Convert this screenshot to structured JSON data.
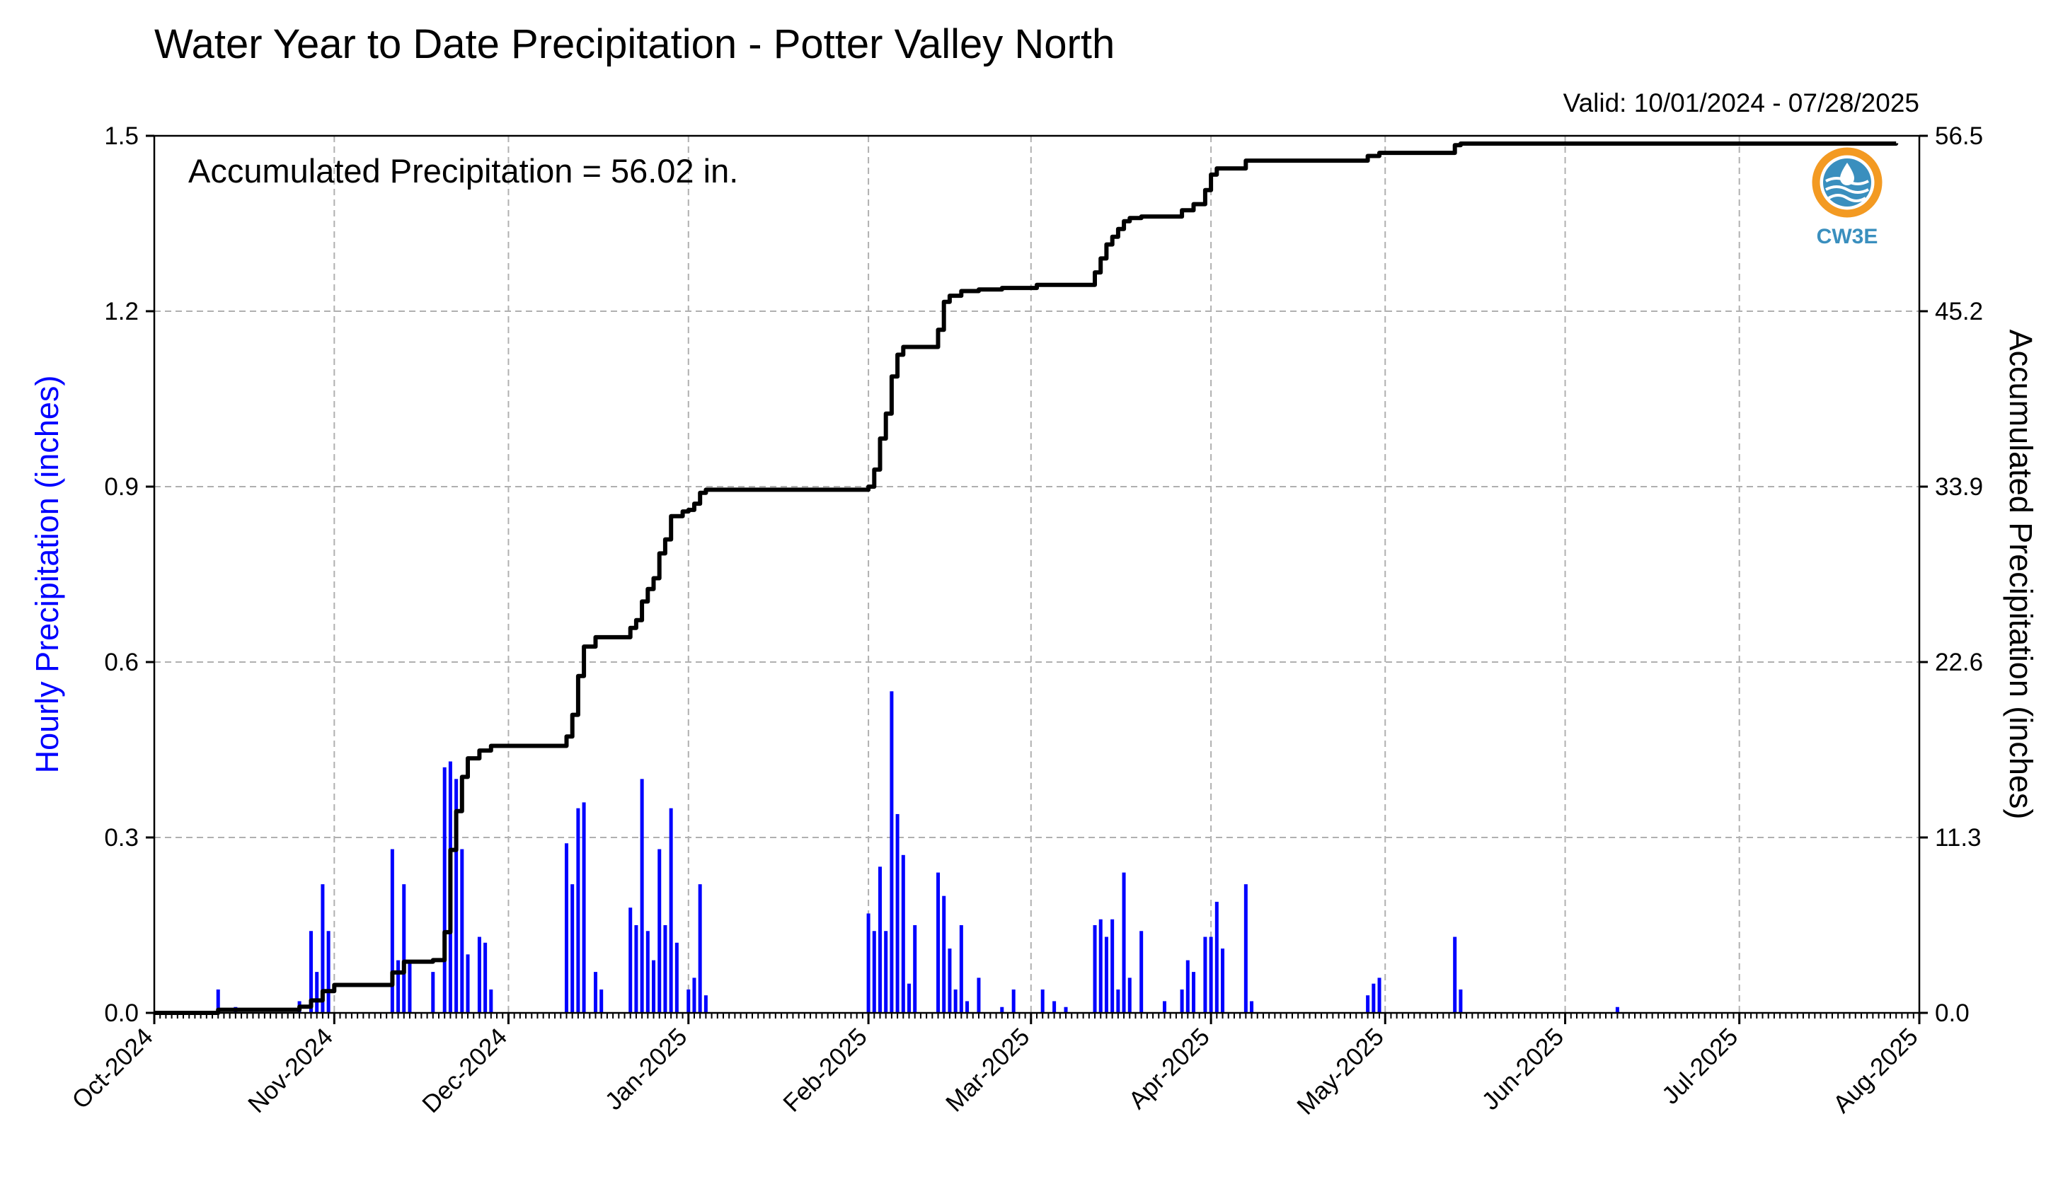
{
  "title": "Water Year to Date Precipitation - Potter Valley North",
  "valid": "Valid: 10/01/2024 - 07/28/2025",
  "annotation": "Accumulated Precipitation = 56.02 in.",
  "logo": {
    "text": "CW3E",
    "colors": {
      "orange": "#f39a22",
      "blue": "#3a8fbe"
    }
  },
  "colors": {
    "bars": "#0000ff",
    "line": "#000000",
    "left_label": "#0000ff"
  },
  "chart_data": {
    "type": "bar+line",
    "xlim": [
      "2024-10-01",
      "2025-08-01"
    ],
    "x_ticks": [
      "Oct-2024",
      "Nov-2024",
      "Dec-2024",
      "Jan-2025",
      "Feb-2025",
      "Mar-2025",
      "Apr-2025",
      "May-2025",
      "Jun-2025",
      "Jul-2025",
      "Aug-2025"
    ],
    "ylabel_left": "Hourly Precipitation (inches)",
    "ylabel_right": "Accumulated Precipitation (inches)",
    "ylim_left": [
      0,
      1.5
    ],
    "ylim_right": [
      0,
      56.5
    ],
    "y_ticks_left": [
      "0.0",
      "0.3",
      "0.6",
      "0.9",
      "1.2",
      "1.5"
    ],
    "y_ticks_right": [
      "0.0",
      "11.3",
      "22.6",
      "33.9",
      "45.2",
      "56.5"
    ],
    "grid": true,
    "series": [
      {
        "name": "Hourly Precipitation",
        "type": "bar",
        "axis": "left",
        "points": [
          [
            "2024-10-12",
            0.04
          ],
          [
            "2024-10-15",
            0.01
          ],
          [
            "2024-10-26",
            0.02
          ],
          [
            "2024-10-28",
            0.14
          ],
          [
            "2024-10-29",
            0.07
          ],
          [
            "2024-10-30",
            0.22
          ],
          [
            "2024-10-31",
            0.14
          ],
          [
            "2024-11-11",
            0.28
          ],
          [
            "2024-11-12",
            0.09
          ],
          [
            "2024-11-13",
            0.22
          ],
          [
            "2024-11-14",
            0.09
          ],
          [
            "2024-11-18",
            0.07
          ],
          [
            "2024-11-20",
            0.42
          ],
          [
            "2024-11-21",
            0.43
          ],
          [
            "2024-11-22",
            0.4
          ],
          [
            "2024-11-23",
            0.28
          ],
          [
            "2024-11-24",
            0.1
          ],
          [
            "2024-11-26",
            0.13
          ],
          [
            "2024-11-27",
            0.12
          ],
          [
            "2024-11-28",
            0.04
          ],
          [
            "2024-12-11",
            0.29
          ],
          [
            "2024-12-12",
            0.22
          ],
          [
            "2024-12-13",
            0.35
          ],
          [
            "2024-12-14",
            0.36
          ],
          [
            "2024-12-16",
            0.07
          ],
          [
            "2024-12-17",
            0.04
          ],
          [
            "2024-12-22",
            0.18
          ],
          [
            "2024-12-23",
            0.15
          ],
          [
            "2024-12-24",
            0.4
          ],
          [
            "2024-12-25",
            0.14
          ],
          [
            "2024-12-26",
            0.09
          ],
          [
            "2024-12-27",
            0.28
          ],
          [
            "2024-12-28",
            0.15
          ],
          [
            "2024-12-29",
            0.35
          ],
          [
            "2024-12-30",
            0.12
          ],
          [
            "2025-01-01",
            0.04
          ],
          [
            "2025-01-02",
            0.06
          ],
          [
            "2025-01-03",
            0.22
          ],
          [
            "2025-01-04",
            0.03
          ],
          [
            "2025-02-01",
            0.17
          ],
          [
            "2025-02-02",
            0.14
          ],
          [
            "2025-02-03",
            0.25
          ],
          [
            "2025-02-04",
            0.14
          ],
          [
            "2025-02-05",
            0.55
          ],
          [
            "2025-02-06",
            0.34
          ],
          [
            "2025-02-07",
            0.27
          ],
          [
            "2025-02-08",
            0.05
          ],
          [
            "2025-02-09",
            0.15
          ],
          [
            "2025-02-13",
            0.24
          ],
          [
            "2025-02-14",
            0.2
          ],
          [
            "2025-02-15",
            0.11
          ],
          [
            "2025-02-16",
            0.04
          ],
          [
            "2025-02-17",
            0.15
          ],
          [
            "2025-02-18",
            0.02
          ],
          [
            "2025-02-20",
            0.06
          ],
          [
            "2025-02-24",
            0.01
          ],
          [
            "2025-02-26",
            0.04
          ],
          [
            "2025-03-03",
            0.04
          ],
          [
            "2025-03-05",
            0.02
          ],
          [
            "2025-03-07",
            0.01
          ],
          [
            "2025-03-12",
            0.15
          ],
          [
            "2025-03-13",
            0.16
          ],
          [
            "2025-03-14",
            0.13
          ],
          [
            "2025-03-15",
            0.16
          ],
          [
            "2025-03-16",
            0.04
          ],
          [
            "2025-03-17",
            0.24
          ],
          [
            "2025-03-18",
            0.06
          ],
          [
            "2025-03-20",
            0.14
          ],
          [
            "2025-03-24",
            0.02
          ],
          [
            "2025-03-27",
            0.04
          ],
          [
            "2025-03-28",
            0.09
          ],
          [
            "2025-03-29",
            0.07
          ],
          [
            "2025-03-31",
            0.13
          ],
          [
            "2025-04-01",
            0.13
          ],
          [
            "2025-04-02",
            0.19
          ],
          [
            "2025-04-03",
            0.11
          ],
          [
            "2025-04-07",
            0.22
          ],
          [
            "2025-04-08",
            0.02
          ],
          [
            "2025-04-28",
            0.03
          ],
          [
            "2025-04-29",
            0.05
          ],
          [
            "2025-04-30",
            0.06
          ],
          [
            "2025-05-13",
            0.13
          ],
          [
            "2025-05-14",
            0.04
          ],
          [
            "2025-06-10",
            0.01
          ]
        ]
      },
      {
        "name": "Accumulated Precipitation",
        "type": "step-line",
        "axis": "right",
        "points": [
          [
            "2024-10-01",
            0.0
          ],
          [
            "2024-10-12",
            0.2
          ],
          [
            "2024-10-26",
            0.4
          ],
          [
            "2024-10-28",
            0.8
          ],
          [
            "2024-10-30",
            1.4
          ],
          [
            "2024-11-01",
            1.8
          ],
          [
            "2024-11-11",
            2.6
          ],
          [
            "2024-11-13",
            3.3
          ],
          [
            "2024-11-18",
            3.4
          ],
          [
            "2024-11-20",
            5.2
          ],
          [
            "2024-11-21",
            10.5
          ],
          [
            "2024-11-22",
            13.0
          ],
          [
            "2024-11-23",
            15.2
          ],
          [
            "2024-11-24",
            16.4
          ],
          [
            "2024-11-26",
            16.9
          ],
          [
            "2024-11-28",
            17.2
          ],
          [
            "2024-12-11",
            17.8
          ],
          [
            "2024-12-12",
            19.2
          ],
          [
            "2024-12-13",
            21.7
          ],
          [
            "2024-12-14",
            23.6
          ],
          [
            "2024-12-16",
            24.2
          ],
          [
            "2024-12-22",
            24.8
          ],
          [
            "2024-12-23",
            25.3
          ],
          [
            "2024-12-24",
            26.5
          ],
          [
            "2024-12-25",
            27.3
          ],
          [
            "2024-12-26",
            28.0
          ],
          [
            "2024-12-27",
            29.6
          ],
          [
            "2024-12-28",
            30.5
          ],
          [
            "2024-12-29",
            32.0
          ],
          [
            "2024-12-31",
            32.3
          ],
          [
            "2025-01-01",
            32.4
          ],
          [
            "2025-01-02",
            32.8
          ],
          [
            "2025-01-03",
            33.5
          ],
          [
            "2025-01-04",
            33.7
          ],
          [
            "2025-02-01",
            33.9
          ],
          [
            "2025-02-02",
            35.0
          ],
          [
            "2025-02-03",
            37.0
          ],
          [
            "2025-02-04",
            38.6
          ],
          [
            "2025-02-05",
            41.0
          ],
          [
            "2025-02-06",
            42.4
          ],
          [
            "2025-02-07",
            42.9
          ],
          [
            "2025-02-13",
            44.0
          ],
          [
            "2025-02-14",
            45.8
          ],
          [
            "2025-02-15",
            46.2
          ],
          [
            "2025-02-17",
            46.5
          ],
          [
            "2025-02-20",
            46.6
          ],
          [
            "2025-02-24",
            46.7
          ],
          [
            "2025-03-02",
            46.9
          ],
          [
            "2025-03-12",
            47.7
          ],
          [
            "2025-03-13",
            48.6
          ],
          [
            "2025-03-14",
            49.5
          ],
          [
            "2025-03-15",
            50.0
          ],
          [
            "2025-03-16",
            50.5
          ],
          [
            "2025-03-17",
            51.0
          ],
          [
            "2025-03-18",
            51.2
          ],
          [
            "2025-03-20",
            51.3
          ],
          [
            "2025-03-27",
            51.7
          ],
          [
            "2025-03-29",
            52.1
          ],
          [
            "2025-03-31",
            53.0
          ],
          [
            "2025-04-01",
            54.0
          ],
          [
            "2025-04-02",
            54.4
          ],
          [
            "2025-04-07",
            54.9
          ],
          [
            "2025-04-28",
            55.2
          ],
          [
            "2025-04-30",
            55.4
          ],
          [
            "2025-05-13",
            55.9
          ],
          [
            "2025-05-14",
            56.0
          ],
          [
            "2025-07-28",
            56.02
          ]
        ]
      }
    ]
  }
}
